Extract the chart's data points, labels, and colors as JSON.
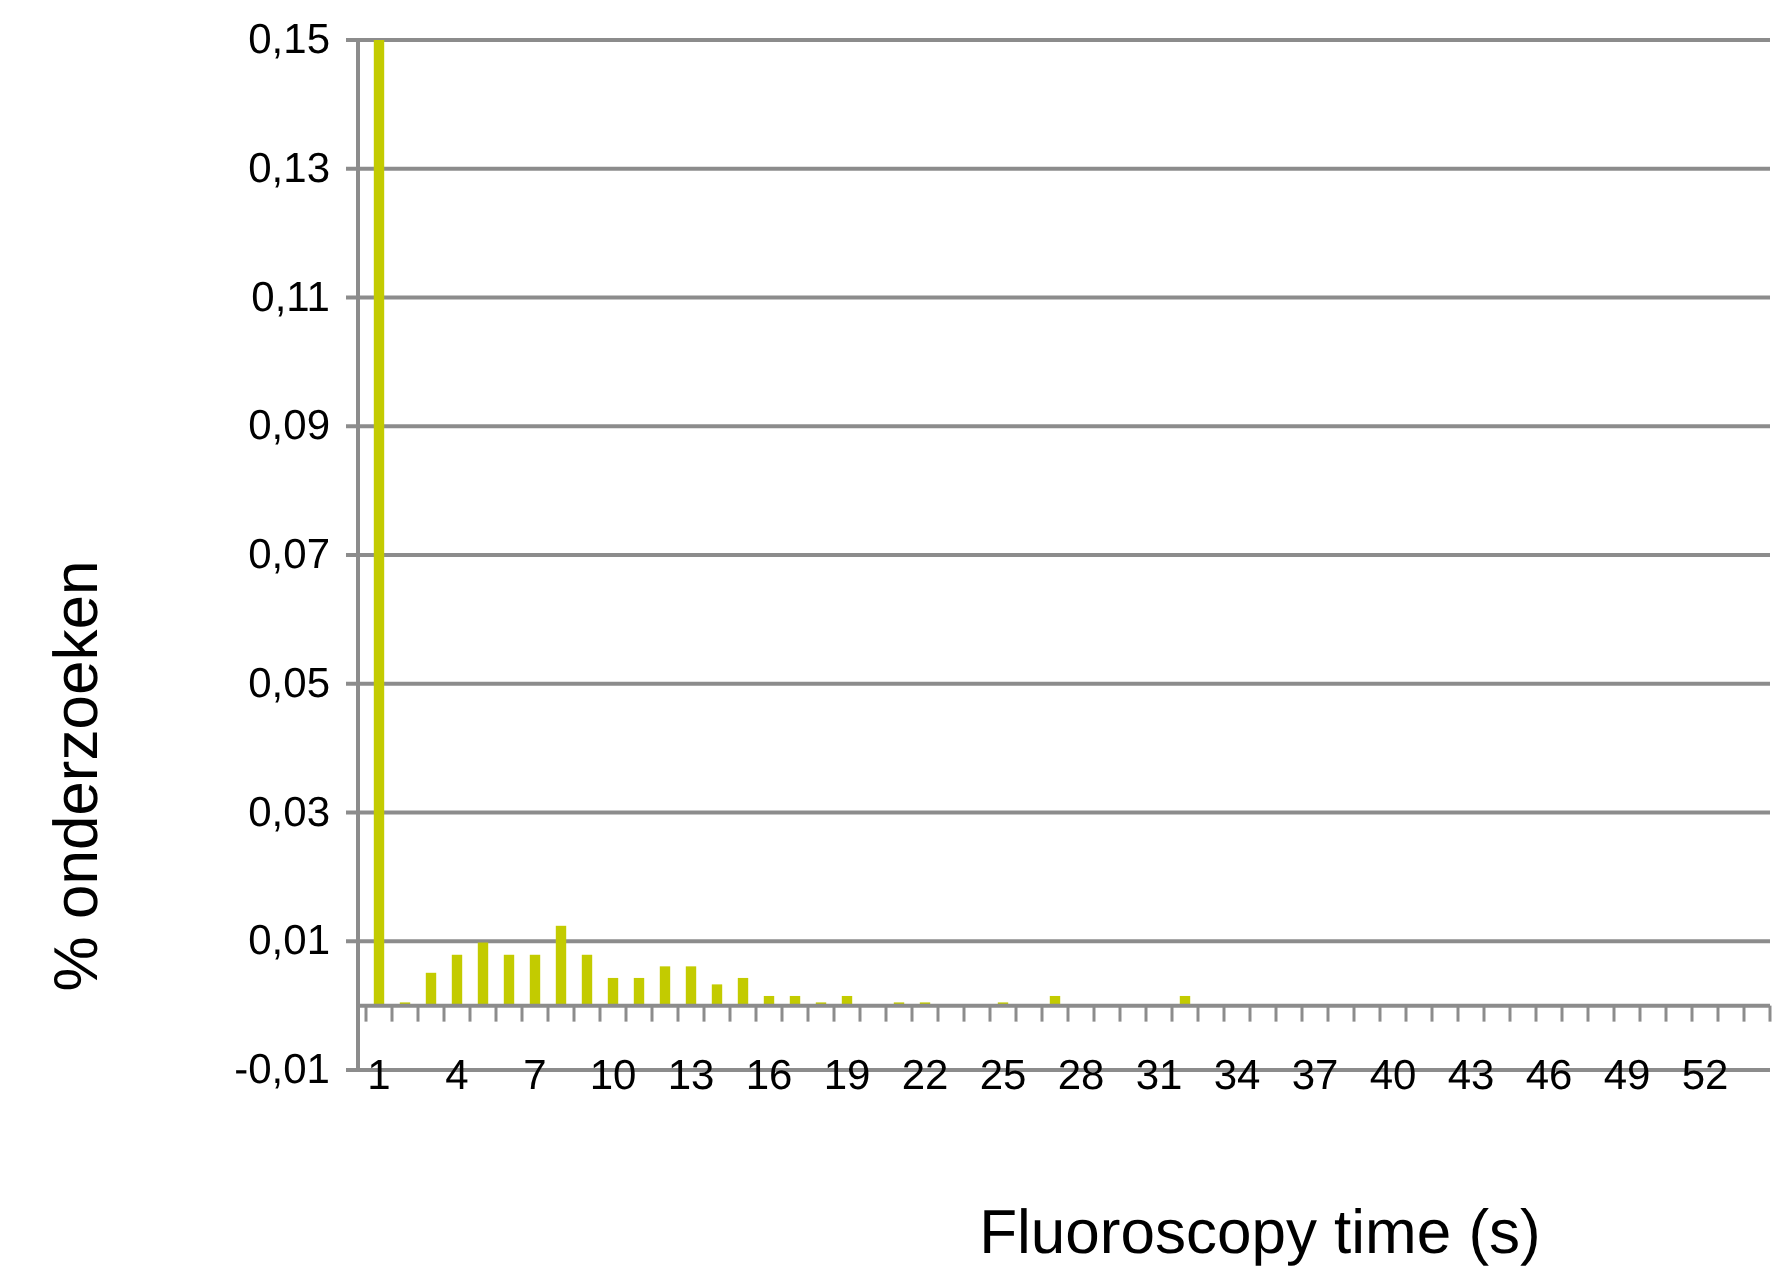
{
  "chart_data": {
    "type": "bar",
    "xlabel": "Fluoroscopy time (s)",
    "ylabel": "% onderzoeken",
    "categories": [
      "1",
      null,
      null,
      "4",
      null,
      null,
      "7",
      null,
      null,
      "10",
      null,
      null,
      "13",
      null,
      null,
      "16",
      null,
      null,
      "19",
      null,
      null,
      "22",
      null,
      null,
      "25",
      null,
      null,
      "28",
      null,
      null,
      "31",
      null,
      null,
      "34",
      null,
      null,
      "37",
      null,
      null,
      "40",
      null,
      null,
      "43",
      null,
      null,
      "46",
      null,
      null,
      "49",
      null,
      null,
      "52",
      null,
      null
    ],
    "values": [
      0.15,
      0.0005,
      0.0051,
      0.0079,
      0.0098,
      0.0079,
      0.0079,
      0.0124,
      0.0079,
      0.0043,
      0.0043,
      0.0061,
      0.0061,
      0.0033,
      0.0043,
      0.0015,
      0.0015,
      0.0005,
      0.0015,
      0,
      0.0005,
      0.0005,
      0,
      0,
      0.0005,
      0,
      0.0015,
      0,
      0,
      0,
      0,
      0.0015,
      0,
      0,
      0,
      0,
      0,
      0,
      0,
      0,
      0,
      0,
      0,
      0,
      0,
      0,
      0,
      0,
      0,
      0,
      0,
      0,
      0,
      0
    ],
    "color": "#c3cb00",
    "ylim": [
      -0.01,
      0.15
    ],
    "yticks": [
      {
        "value": -0.01,
        "label": "-0,01"
      },
      {
        "value": 0.01,
        "label": "0,01"
      },
      {
        "value": 0.03,
        "label": "0,03"
      },
      {
        "value": 0.05,
        "label": "0,05"
      },
      {
        "value": 0.07,
        "label": "0,07"
      },
      {
        "value": 0.09,
        "label": "0,09"
      },
      {
        "value": 0.11,
        "label": "0,11"
      },
      {
        "value": 0.13,
        "label": "0,13"
      },
      {
        "value": 0.15,
        "label": "0,15"
      }
    ],
    "grid": "y"
  }
}
